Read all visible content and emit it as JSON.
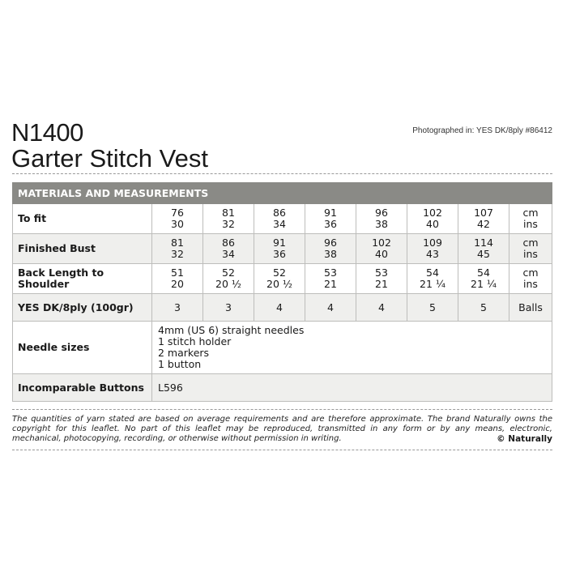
{
  "header": {
    "code": "N1400",
    "title": "Garter Stitch Vest",
    "photographed": "Photographed in: YES DK/8ply #86412"
  },
  "table": {
    "heading": "MATERIALS AND MEASUREMENTS",
    "rows": [
      {
        "label": "To fit",
        "values": [
          [
            "76",
            "30"
          ],
          [
            "81",
            "32"
          ],
          [
            "86",
            "34"
          ],
          [
            "91",
            "36"
          ],
          [
            "96",
            "38"
          ],
          [
            "102",
            "40"
          ],
          [
            "107",
            "42"
          ]
        ],
        "unit": [
          "cm",
          "ins"
        ]
      },
      {
        "label": "Finished Bust",
        "values": [
          [
            "81",
            "32"
          ],
          [
            "86",
            "34"
          ],
          [
            "91",
            "36"
          ],
          [
            "96",
            "38"
          ],
          [
            "102",
            "40"
          ],
          [
            "109",
            "43"
          ],
          [
            "114",
            "45"
          ]
        ],
        "unit": [
          "cm",
          "ins"
        ]
      },
      {
        "label": "Back Length to Shoulder",
        "values": [
          [
            "51",
            "20"
          ],
          [
            "52",
            "20 ½"
          ],
          [
            "52",
            "20 ½"
          ],
          [
            "53",
            "21"
          ],
          [
            "53",
            "21"
          ],
          [
            "54",
            "21 ¼"
          ],
          [
            "54",
            "21 ¼"
          ]
        ],
        "unit": [
          "cm",
          "ins"
        ]
      },
      {
        "label": "YES DK/8ply (100gr)",
        "values": [
          [
            "3"
          ],
          [
            "3"
          ],
          [
            "4"
          ],
          [
            "4"
          ],
          [
            "4"
          ],
          [
            "5"
          ],
          [
            "5"
          ]
        ],
        "unit": [
          "Balls"
        ]
      }
    ],
    "needles": {
      "label": "Needle sizes",
      "items": [
        "4mm (US 6) straight needles",
        "1 stitch holder",
        "2 markers",
        "1 button"
      ]
    },
    "buttons": {
      "label": "Incomparable Buttons",
      "value": "L596"
    }
  },
  "footer": {
    "disclaimer": "The quantities of yarn stated are based on average requirements and are therefore approximate. The brand Naturally owns the copyright for this leaflet. No part of this leaflet may be reproduced, transmitted in any form or by any means, electronic, mechanical, photocopying, recording, or otherwise without permission in writing.",
    "copyright": "© Naturally"
  },
  "colors": {
    "header_band": "#8a8a86",
    "row_alt": "#efefed"
  }
}
